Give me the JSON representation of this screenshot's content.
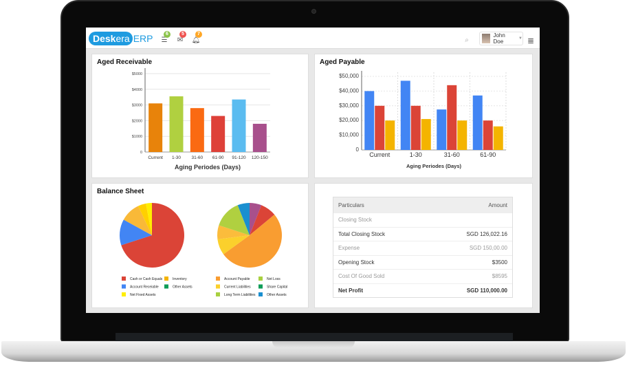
{
  "header": {
    "logo": {
      "brand_left": "Desk",
      "brand_right": "era",
      "product": "ERP",
      "color": "#1e9be0"
    },
    "icons": [
      {
        "name": "list-icon",
        "badge": "6",
        "color": "#8bc34a"
      },
      {
        "name": "mail-icon",
        "badge": "5",
        "color": "#ef5350"
      },
      {
        "name": "bell-icon",
        "badge": "7",
        "color": "#ffa726"
      }
    ],
    "user": "John Doe"
  },
  "chart_data": [
    {
      "type": "bar",
      "title": "Aged Receivable",
      "xlabel": "Aging Periodes (Days)",
      "categories": [
        "Current",
        "1-30",
        "31-60",
        "61-90",
        "91-120",
        "120-150"
      ],
      "values": [
        3100,
        3550,
        2800,
        2300,
        3350,
        1800
      ],
      "colors": [
        "#e8830a",
        "#b0d040",
        "#fa6a12",
        "#de4139",
        "#5bbcf0",
        "#a8508c"
      ],
      "ylim": [
        0,
        5000
      ],
      "yticks": [
        "0",
        "$1000",
        "$2000",
        "$3000",
        "$4000",
        "$5000"
      ],
      "grid": true
    },
    {
      "type": "bar",
      "title": "Aged Payable",
      "xlabel": "Aging Periodes (Days)",
      "categories": [
        "Current",
        "1-30",
        "31-60",
        "61-90"
      ],
      "series": [
        {
          "values": [
            40000,
            47000,
            27500,
            37000
          ],
          "color": "#4285f4"
        },
        {
          "values": [
            30000,
            30000,
            44000,
            20000
          ],
          "color": "#db4437"
        },
        {
          "values": [
            20000,
            21000,
            20000,
            16000
          ],
          "color": "#f4b400"
        }
      ],
      "ylim": [
        0,
        50000
      ],
      "yticks": [
        "0",
        "$10,000",
        "$20,000",
        "$30,000",
        "$40,000",
        "$50,000"
      ],
      "grid": true
    },
    {
      "type": "pie",
      "title": "Balance Sheet",
      "slices": [
        {
          "label": "Cash or Cash Equals",
          "value": 70,
          "color": "#db4437"
        },
        {
          "label": "Account Receiable",
          "value": 13,
          "color": "#4285f4"
        },
        {
          "label": "Inventory",
          "value": 10,
          "color": "#f9b938"
        },
        {
          "label": "Other Assets",
          "value": 4,
          "color": "#ffd000"
        },
        {
          "label": "Net Fixed Assets",
          "value": 3,
          "color": "#ffee00"
        }
      ],
      "legend": [
        {
          "label": "Cash or Cash Equals",
          "color": "#db4437"
        },
        {
          "label": "Inventory",
          "color": "#f4b400"
        },
        {
          "label": "Account Receiable",
          "color": "#4285f4"
        },
        {
          "label": "Other Assets",
          "color": "#0f9d58"
        },
        {
          "label": "Net Fixed Assets",
          "color": "#ffee00"
        }
      ]
    },
    {
      "type": "pie",
      "slices": [
        {
          "label": "Other Assets",
          "value": 6,
          "color": "#a8508c"
        },
        {
          "label": "Net Loss",
          "value": 8,
          "color": "#db4437"
        },
        {
          "label": "Account Payable",
          "value": 51,
          "color": "#f99d31"
        },
        {
          "label": "Current Liabilities",
          "value": 8,
          "color": "#fbd02c"
        },
        {
          "label": "Share Capital",
          "value": 7,
          "color": "#fbbc3c"
        },
        {
          "label": "Long Term Liabilities",
          "value": 14,
          "color": "#b0d040"
        },
        {
          "label": "Other Assets",
          "value": 6,
          "color": "#1a8fd0"
        }
      ],
      "legend": [
        {
          "label": "Account Payable",
          "color": "#f99d31"
        },
        {
          "label": "Net Loss",
          "color": "#a8d040"
        },
        {
          "label": "Current Liabilities",
          "color": "#fbd02c"
        },
        {
          "label": "Share Capital",
          "color": "#0f9d58"
        },
        {
          "label": "Long Term Liabilities",
          "color": "#a8d040"
        },
        {
          "label": "Other Assets",
          "color": "#1a8fd0"
        }
      ]
    }
  ],
  "table": {
    "headers": [
      "Particulars",
      "Amount"
    ],
    "rows": [
      {
        "label": "Closing Stock",
        "amount": "",
        "style": "muted"
      },
      {
        "label": "Total Closing Stock",
        "amount": "SGD 126,022.16",
        "style": "dark"
      },
      {
        "label": "Expense",
        "amount": "SGD 150,00.00",
        "style": "muted"
      },
      {
        "label": "Opening Stock",
        "amount": "$3500",
        "style": "dark"
      },
      {
        "label": "Cost Of Good Sold",
        "amount": "$8595",
        "style": "muted"
      },
      {
        "label": "Net Profit",
        "amount": "SGD 110,000.00",
        "style": "bold"
      }
    ]
  }
}
